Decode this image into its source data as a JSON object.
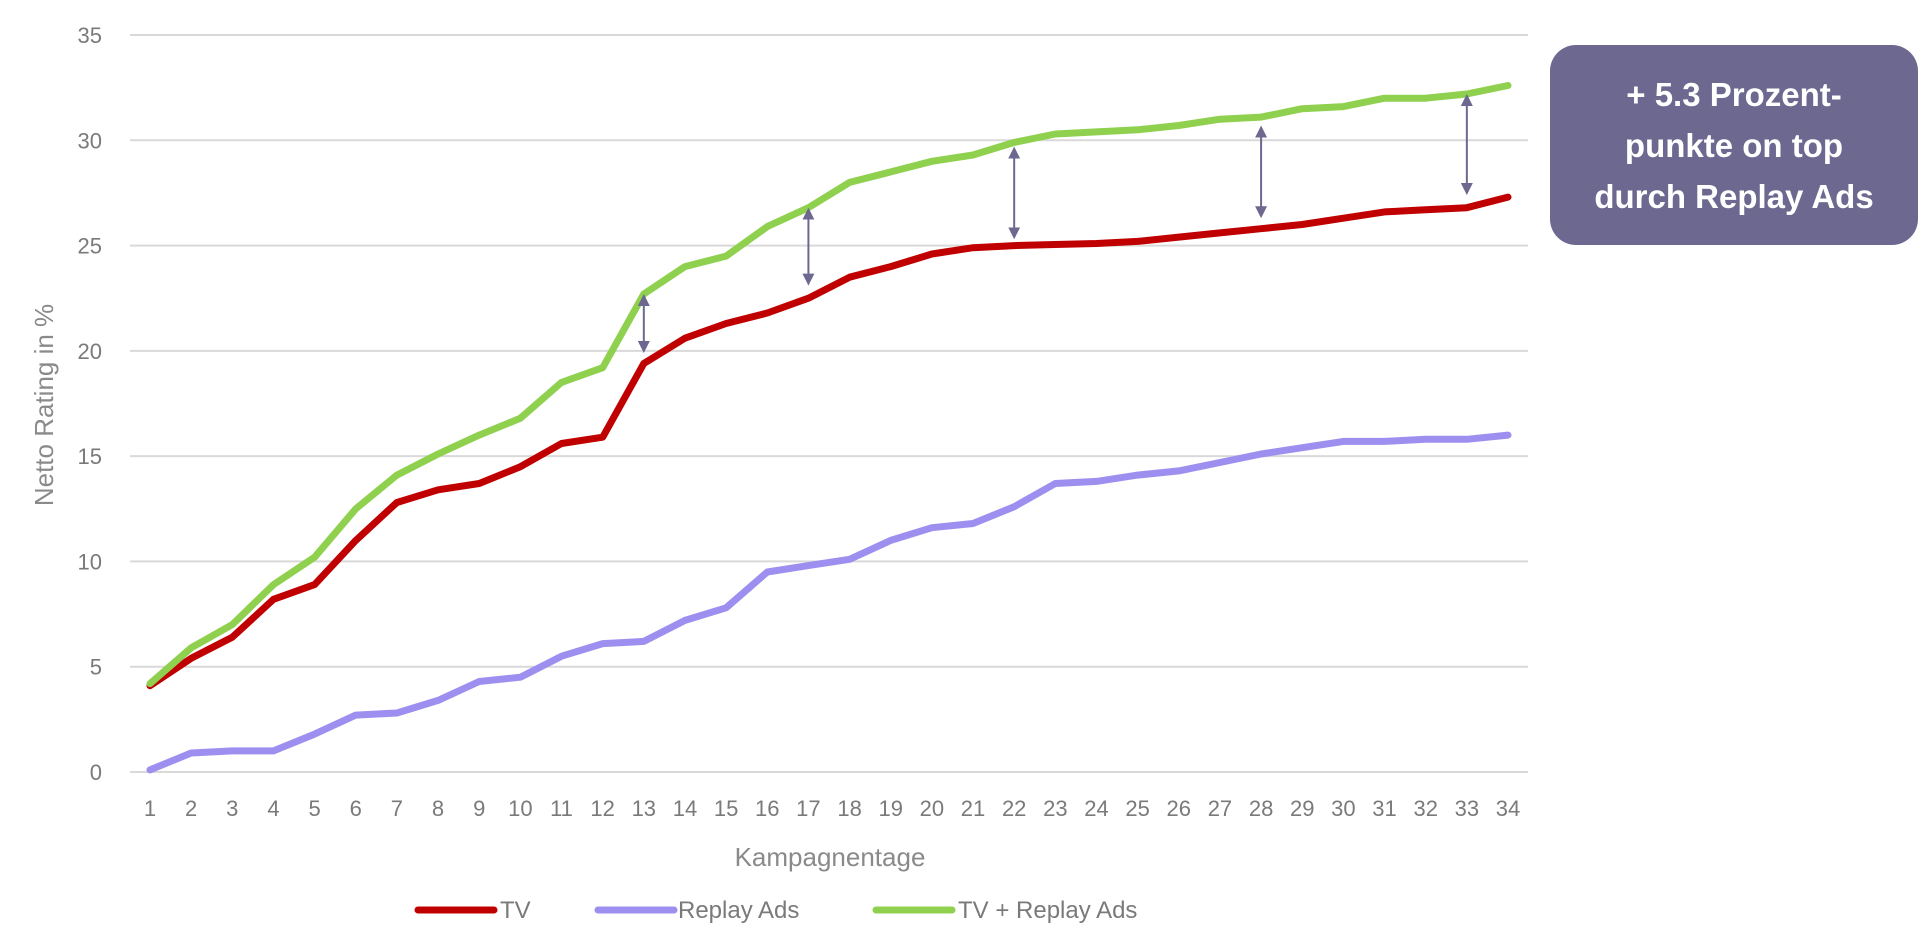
{
  "callout": {
    "line1": "+ 5.3 Prozent-",
    "line2": "punkte on top",
    "line3": "durch Replay Ads",
    "bg_color": "#6d6890"
  },
  "chart_data": {
    "type": "line",
    "xlabel": "Kampagnentage",
    "ylabel": "Netto Rating in %",
    "ylim": [
      0,
      35
    ],
    "yticks": [
      0,
      5,
      10,
      15,
      20,
      25,
      30,
      35
    ],
    "grid": "horizontal",
    "legend_position": "bottom",
    "categories": [
      1,
      2,
      3,
      4,
      5,
      6,
      7,
      8,
      9,
      10,
      11,
      12,
      13,
      14,
      15,
      16,
      17,
      18,
      19,
      20,
      21,
      22,
      23,
      24,
      25,
      26,
      27,
      28,
      29,
      30,
      31,
      32,
      33,
      34
    ],
    "series": [
      {
        "name": "TV",
        "color": "#c00000",
        "values": [
          4.1,
          5.4,
          6.4,
          8.2,
          8.9,
          11.0,
          12.8,
          13.4,
          13.7,
          14.5,
          15.6,
          15.9,
          19.4,
          20.6,
          21.3,
          21.8,
          22.5,
          23.5,
          24.0,
          24.6,
          24.9,
          25.0,
          25.05,
          25.1,
          25.2,
          25.4,
          25.6,
          25.8,
          26.0,
          26.3,
          26.6,
          26.7,
          26.8,
          27.3
        ]
      },
      {
        "name": "Replay Ads",
        "color": "#9d8ff0",
        "values": [
          0.1,
          0.9,
          1.0,
          1.0,
          1.8,
          2.7,
          2.8,
          3.4,
          4.3,
          4.5,
          5.5,
          6.1,
          6.2,
          7.2,
          7.8,
          9.5,
          9.8,
          10.1,
          11.0,
          11.6,
          11.8,
          12.6,
          13.7,
          13.8,
          14.1,
          14.3,
          14.7,
          15.1,
          15.4,
          15.7,
          15.7,
          15.8,
          15.8,
          16.0
        ]
      },
      {
        "name": "TV + Replay Ads",
        "color": "#8fd14f",
        "values": [
          4.2,
          5.9,
          7.0,
          8.9,
          10.2,
          12.5,
          14.1,
          15.1,
          16.0,
          16.8,
          18.5,
          19.2,
          22.7,
          24.0,
          24.5,
          25.9,
          26.8,
          28.0,
          28.5,
          29.0,
          29.3,
          29.9,
          30.3,
          30.4,
          30.5,
          30.7,
          31.0,
          31.1,
          31.5,
          31.6,
          32.0,
          32.0,
          32.2,
          32.6
        ]
      }
    ],
    "difference_arrows": [
      {
        "x": 13,
        "from": 19.9,
        "to": 22.7
      },
      {
        "x": 17,
        "from": 23.1,
        "to": 26.8
      },
      {
        "x": 22,
        "from": 25.3,
        "to": 29.7
      },
      {
        "x": 28,
        "from": 26.3,
        "to": 30.7
      },
      {
        "x": 33,
        "from": 27.4,
        "to": 32.2
      }
    ],
    "arrow_color": "#6d6890"
  }
}
